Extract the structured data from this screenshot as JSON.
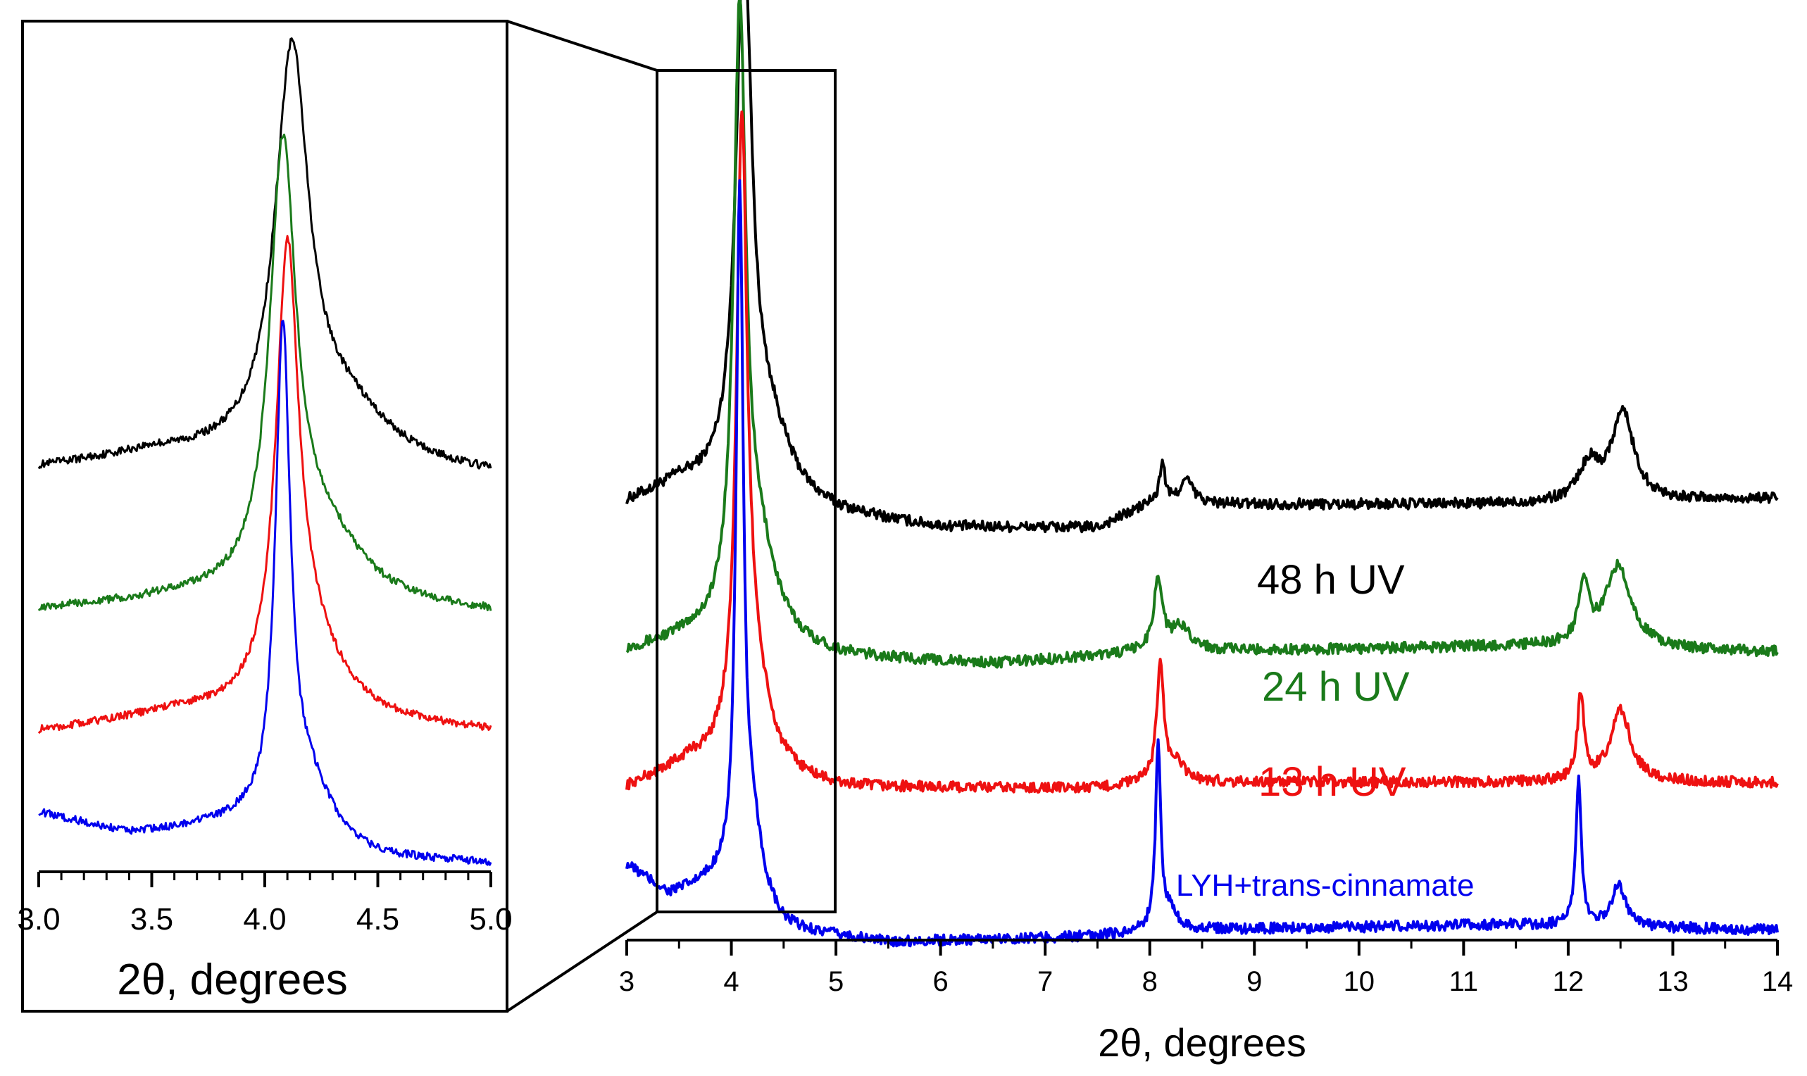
{
  "chart_data": [
    {
      "name": "main-plot",
      "type": "line",
      "xlabel": "2θ, degrees",
      "ylabel": "",
      "xlim": [
        3,
        14
      ],
      "x_ticks": [
        "3",
        "4",
        "5",
        "6",
        "7",
        "8",
        "9",
        "10",
        "11",
        "12",
        "13",
        "14"
      ],
      "y_axis_visible": false,
      "zoom_box_x_range": [
        3.3,
        5.0
      ],
      "series": [
        {
          "name": "48 h UV",
          "color": "#000000",
          "offset": 3.6,
          "baseline": 0.1,
          "rise": [
            [
              3.0,
              0.0
            ],
            [
              3.5,
              0.15
            ],
            [
              5.0,
              -0.1
            ],
            [
              6.0,
              -0.2
            ],
            [
              7.5,
              -0.2
            ],
            [
              8.0,
              0.0
            ],
            [
              11.5,
              0.0
            ],
            [
              14.0,
              0.05
            ]
          ],
          "peaks": [
            [
              4.12,
              4.5,
              0.09
            ],
            [
              4.35,
              0.6,
              0.25
            ],
            [
              8.12,
              0.35,
              0.03
            ],
            [
              8.35,
              0.2,
              0.08
            ],
            [
              12.2,
              0.3,
              0.12
            ],
            [
              12.52,
              0.75,
              0.13
            ]
          ]
        },
        {
          "name": "24 h UV",
          "color": "#1a7a1a",
          "offset": 2.35,
          "baseline": 0.1,
          "rise": [
            [
              3.0,
              0.0
            ],
            [
              3.6,
              0.1
            ],
            [
              5.0,
              -0.05
            ],
            [
              6.5,
              -0.1
            ],
            [
              8.0,
              0.0
            ],
            [
              11.5,
              0.05
            ],
            [
              14.0,
              0.0
            ]
          ],
          "peaks": [
            [
              4.08,
              5.0,
              0.07
            ],
            [
              4.25,
              0.8,
              0.22
            ],
            [
              8.08,
              0.6,
              0.05
            ],
            [
              8.3,
              0.2,
              0.12
            ],
            [
              12.15,
              0.5,
              0.06
            ],
            [
              12.48,
              0.7,
              0.15
            ]
          ]
        },
        {
          "name": "13 h UV",
          "color": "#ee1111",
          "offset": 1.2,
          "baseline": 0.1,
          "rise": [
            [
              3.0,
              0.0
            ],
            [
              3.6,
              0.2
            ],
            [
              5.0,
              0.0
            ],
            [
              7.5,
              0.0
            ],
            [
              8.0,
              0.05
            ],
            [
              11.5,
              0.05
            ],
            [
              14.0,
              0.05
            ]
          ],
          "peaks": [
            [
              4.1,
              5.0,
              0.06
            ],
            [
              4.2,
              0.8,
              0.18
            ],
            [
              8.1,
              1.0,
              0.04
            ],
            [
              8.25,
              0.15,
              0.1
            ],
            [
              12.12,
              0.7,
              0.04
            ],
            [
              12.5,
              0.6,
              0.12
            ]
          ]
        },
        {
          "name": "LYH+trans-cinnamate",
          "color": "#0000ee",
          "offset": 0.0,
          "baseline": 0.1,
          "rise": [
            [
              3.0,
              0.55
            ],
            [
              3.4,
              0.3
            ],
            [
              3.9,
              0.4
            ],
            [
              4.5,
              0.0
            ],
            [
              5.5,
              -0.1
            ],
            [
              7.5,
              -0.05
            ],
            [
              8.0,
              0.0
            ],
            [
              11.5,
              0.05
            ],
            [
              14.0,
              0.0
            ]
          ],
          "peaks": [
            [
              4.08,
              5.8,
              0.04
            ],
            [
              4.2,
              0.6,
              0.12
            ],
            [
              8.08,
              1.55,
              0.03
            ],
            [
              8.2,
              0.15,
              0.08
            ],
            [
              12.1,
              1.25,
              0.03
            ],
            [
              12.48,
              0.35,
              0.08
            ]
          ]
        }
      ]
    },
    {
      "name": "inset-plot",
      "type": "line",
      "xlabel": "2θ, degrees",
      "ylabel": "",
      "xlim": [
        3.0,
        5.0
      ],
      "x_ticks": [
        "3.0",
        "3.5",
        "4.0",
        "4.5",
        "5.0"
      ],
      "y_axis_visible": false,
      "series": [
        {
          "name": "48 h UV",
          "color": "#000000"
        },
        {
          "name": "24 h UV",
          "color": "#1a7a1a"
        },
        {
          "name": "13 h UV",
          "color": "#ee1111"
        },
        {
          "name": "LYH+trans-cinnamate",
          "color": "#0000ee"
        }
      ]
    }
  ],
  "labels": {
    "s48": "48 h UV",
    "s24": "24 h UV",
    "s13": "13 h UV",
    "lyh": "LYH+trans-cinnamate",
    "main_xlabel": "2θ, degrees",
    "inset_xlabel": "2θ, degrees"
  }
}
